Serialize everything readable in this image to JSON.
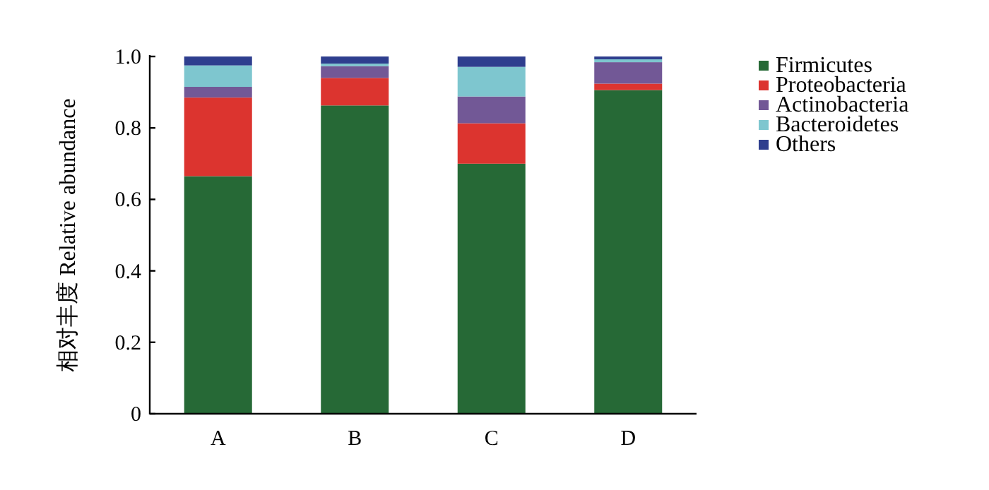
{
  "chart_data": {
    "type": "bar",
    "stacked": true,
    "ylabel": "相对丰度 Relative abundance",
    "categories": [
      "A",
      "B",
      "C",
      "D"
    ],
    "series": [
      {
        "name": "Firmicutes",
        "color": "#266936",
        "values": [
          0.665,
          0.863,
          0.7,
          0.906
        ]
      },
      {
        "name": "Proteobacteria",
        "color": "#dc342f",
        "values": [
          0.22,
          0.077,
          0.113,
          0.018
        ]
      },
      {
        "name": "Actinobacteria",
        "color": "#725896",
        "values": [
          0.03,
          0.033,
          0.075,
          0.06
        ]
      },
      {
        "name": "Bacteroidetes",
        "color": "#7ec6cf",
        "values": [
          0.06,
          0.007,
          0.083,
          0.008
        ]
      },
      {
        "name": "Others",
        "color": "#2e3e8e",
        "values": [
          0.025,
          0.02,
          0.029,
          0.008
        ]
      }
    ],
    "ylim": [
      0,
      1
    ],
    "yticks": [
      0,
      0.2,
      0.4,
      0.6,
      0.8,
      {
        "value": 1,
        "label": "1.0"
      }
    ],
    "grid": false,
    "legend": "right"
  }
}
